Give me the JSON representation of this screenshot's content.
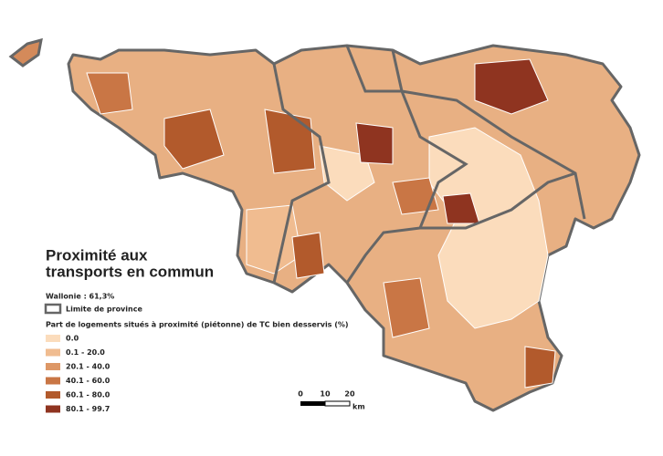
{
  "title": [
    "Proximité aux",
    "transports en commun"
  ],
  "subtitle": "Wallonie : 61,3%",
  "province_legend": "Limite de province",
  "legend": {
    "title": "Part de logements situés à proximité (piétonne) de TC bien desservis (%)",
    "classes": [
      {
        "label": "0.0",
        "color": "#fbdcbc"
      },
      {
        "label": "0.1 - 20.0",
        "color": "#f0bc90"
      },
      {
        "label": "20.1 - 40.0",
        "color": "#dd9766"
      },
      {
        "label": "40.1 - 60.0",
        "color": "#c97645"
      },
      {
        "label": "60.1 - 80.0",
        "color": "#b25a2c"
      },
      {
        "label": "80.1 - 99.7",
        "color": "#8f3420"
      }
    ]
  },
  "scale_bar": {
    "ticks": [
      "0",
      "10",
      "20"
    ],
    "unit": "km"
  }
}
